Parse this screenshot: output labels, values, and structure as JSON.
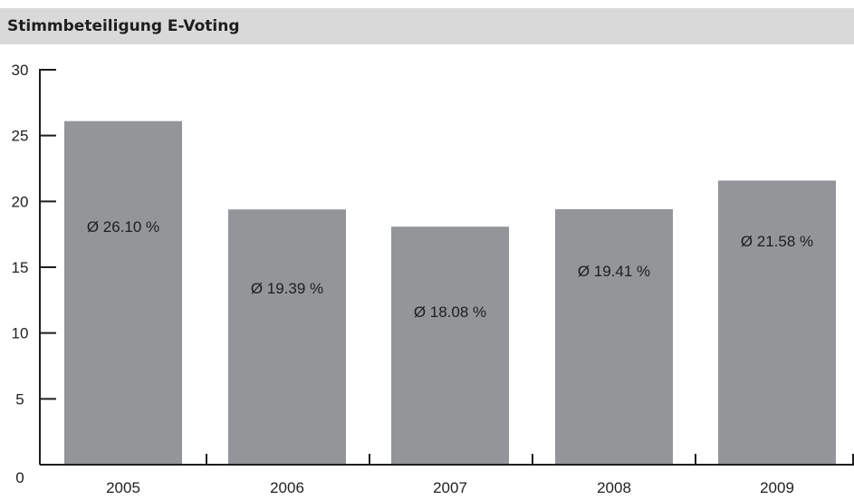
{
  "colors": {
    "bar": "#939598",
    "axis": "#1e1e1e",
    "header": "#d9d9d9"
  },
  "chart_data": {
    "type": "bar",
    "title": "Stimmbeteiligung E-Voting",
    "xlabel": "",
    "ylabel": "",
    "categories": [
      "2005",
      "2006",
      "2007",
      "2008",
      "2009"
    ],
    "values": [
      26.1,
      19.39,
      18.08,
      19.41,
      21.58
    ],
    "data_labels": [
      "Ø 26.10 %",
      "Ø 19.39 %",
      "Ø 18.08 %",
      "Ø 19.41 %",
      "Ø 21.58 %"
    ],
    "ylim": [
      0,
      30
    ],
    "yticks": [
      0,
      5,
      10,
      15,
      20,
      25,
      30
    ],
    "grid": false,
    "legend": "none"
  }
}
